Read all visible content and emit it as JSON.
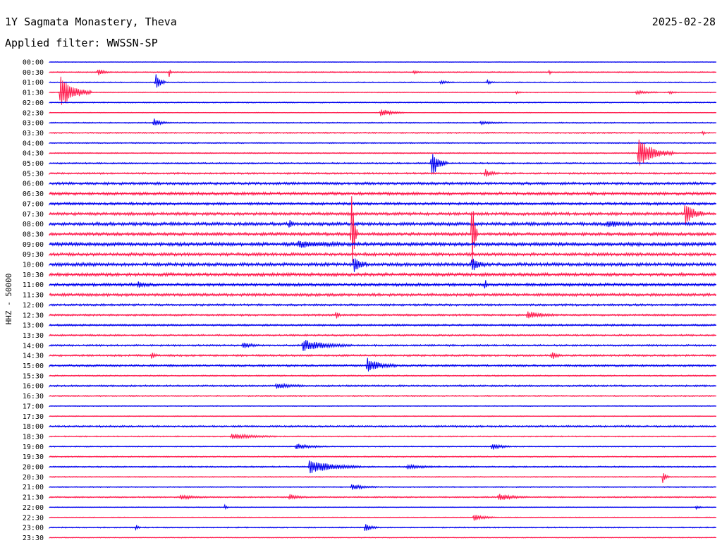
{
  "header": {
    "station": "1Y Sagmata Monastery, Theva",
    "date": "2025-02-28",
    "filter": "Applied filter: WWSSN-SP"
  },
  "chart_data": {
    "type": "line",
    "channel_label": "HHZ - 50000",
    "x_range_minutes": [
      0,
      30
    ],
    "row_labels": [
      "00:00",
      "00:30",
      "01:00",
      "01:30",
      "02:00",
      "02:30",
      "03:00",
      "03:30",
      "04:00",
      "04:30",
      "05:00",
      "05:30",
      "06:00",
      "06:30",
      "07:00",
      "07:30",
      "08:00",
      "08:30",
      "09:00",
      "09:30",
      "10:00",
      "10:30",
      "11:00",
      "11:30",
      "12:00",
      "12:30",
      "13:00",
      "13:30",
      "14:00",
      "14:30",
      "15:00",
      "15:30",
      "16:00",
      "16:30",
      "17:00",
      "17:30",
      "18:00",
      "18:30",
      "19:00",
      "19:30",
      "20:00",
      "20:30",
      "21:00",
      "21:30",
      "22:00",
      "22:30",
      "23:00",
      "23:30"
    ],
    "colors": [
      "#0000ee",
      "#ff1a4d"
    ],
    "noise": [
      0.4,
      0.7,
      0.6,
      0.6,
      0.7,
      0.5,
      0.8,
      0.9,
      0.8,
      0.8,
      1.0,
      1.2,
      1.8,
      2.0,
      1.8,
      2.0,
      2.2,
      2.1,
      2.4,
      2.1,
      2.3,
      2.2,
      2.0,
      1.9,
      1.4,
      1.3,
      1.3,
      1.2,
      1.2,
      1.3,
      1.4,
      0.9,
      1.2,
      0.9,
      0.6,
      0.6,
      1.2,
      0.8,
      0.7,
      0.8,
      0.9,
      0.7,
      0.7,
      0.9,
      0.5,
      0.6,
      0.8,
      0.6
    ],
    "events": [
      {
        "row": 1,
        "minute": 2.2,
        "amp": 6,
        "dur": 0.5
      },
      {
        "row": 1,
        "minute": 5.4,
        "amp": 11,
        "dur": 0.1
      },
      {
        "row": 1,
        "minute": 16.4,
        "amp": 3,
        "dur": 0.3
      },
      {
        "row": 1,
        "minute": 22.5,
        "amp": 4,
        "dur": 0.1
      },
      {
        "row": 2,
        "minute": 4.8,
        "amp": 16,
        "dur": 0.4
      },
      {
        "row": 2,
        "minute": 17.6,
        "amp": 3,
        "dur": 0.6
      },
      {
        "row": 2,
        "minute": 19.7,
        "amp": 3,
        "dur": 0.4
      },
      {
        "row": 3,
        "minute": 0.5,
        "amp": 24,
        "dur": 1.4
      },
      {
        "row": 3,
        "minute": 21.0,
        "amp": 2,
        "dur": 0.3
      },
      {
        "row": 3,
        "minute": 26.4,
        "amp": 3,
        "dur": 1.0
      },
      {
        "row": 3,
        "minute": 27.9,
        "amp": 2,
        "dur": 0.4
      },
      {
        "row": 5,
        "minute": 14.9,
        "amp": 6,
        "dur": 1.1
      },
      {
        "row": 6,
        "minute": 4.7,
        "amp": 6,
        "dur": 0.6
      },
      {
        "row": 6,
        "minute": 19.4,
        "amp": 2,
        "dur": 1.0
      },
      {
        "row": 7,
        "minute": 29.4,
        "amp": 3,
        "dur": 0.1
      },
      {
        "row": 9,
        "minute": 26.5,
        "amp": 20,
        "dur": 1.6
      },
      {
        "row": 10,
        "minute": 17.2,
        "amp": 22,
        "dur": 0.7
      },
      {
        "row": 11,
        "minute": 19.6,
        "amp": 6,
        "dur": 0.6
      },
      {
        "row": 15,
        "minute": 28.6,
        "amp": 18,
        "dur": 0.8
      },
      {
        "row": 16,
        "minute": 10.8,
        "amp": 6,
        "dur": 0.2
      },
      {
        "row": 16,
        "minute": 25.1,
        "amp": 4,
        "dur": 1.2
      },
      {
        "row": 17,
        "minute": 13.6,
        "amp": 70,
        "dur": 0.25
      },
      {
        "row": 17,
        "minute": 19.0,
        "amp": 70,
        "dur": 0.25
      },
      {
        "row": 18,
        "minute": 11.2,
        "amp": 5,
        "dur": 1.8
      },
      {
        "row": 20,
        "minute": 13.7,
        "amp": 12,
        "dur": 0.6
      },
      {
        "row": 20,
        "minute": 19.0,
        "amp": 12,
        "dur": 0.6
      },
      {
        "row": 22,
        "minute": 4.0,
        "amp": 5,
        "dur": 0.5
      },
      {
        "row": 22,
        "minute": 19.6,
        "amp": 10,
        "dur": 0.1
      },
      {
        "row": 25,
        "minute": 12.9,
        "amp": 6,
        "dur": 0.2
      },
      {
        "row": 25,
        "minute": 21.5,
        "amp": 5,
        "dur": 1.2
      },
      {
        "row": 28,
        "minute": 8.7,
        "amp": 4,
        "dur": 0.8
      },
      {
        "row": 28,
        "minute": 11.4,
        "amp": 8,
        "dur": 2.2
      },
      {
        "row": 29,
        "minute": 4.6,
        "amp": 5,
        "dur": 0.3
      },
      {
        "row": 29,
        "minute": 22.6,
        "amp": 6,
        "dur": 0.4
      },
      {
        "row": 30,
        "minute": 14.3,
        "amp": 10,
        "dur": 1.3
      },
      {
        "row": 32,
        "minute": 10.2,
        "amp": 4,
        "dur": 1.2
      },
      {
        "row": 37,
        "minute": 8.2,
        "amp": 4,
        "dur": 2.0
      },
      {
        "row": 38,
        "minute": 11.1,
        "amp": 4,
        "dur": 1.4
      },
      {
        "row": 38,
        "minute": 19.9,
        "amp": 5,
        "dur": 0.9
      },
      {
        "row": 40,
        "minute": 11.7,
        "amp": 10,
        "dur": 2.3
      },
      {
        "row": 40,
        "minute": 16.1,
        "amp": 3,
        "dur": 1.5
      },
      {
        "row": 41,
        "minute": 27.6,
        "amp": 10,
        "dur": 0.3
      },
      {
        "row": 42,
        "minute": 13.6,
        "amp": 4,
        "dur": 1.2
      },
      {
        "row": 43,
        "minute": 5.9,
        "amp": 3,
        "dur": 1.2
      },
      {
        "row": 43,
        "minute": 10.8,
        "amp": 4,
        "dur": 0.8
      },
      {
        "row": 43,
        "minute": 20.2,
        "amp": 5,
        "dur": 1.3
      },
      {
        "row": 44,
        "minute": 7.9,
        "amp": 4,
        "dur": 0.2
      },
      {
        "row": 44,
        "minute": 29.1,
        "amp": 3,
        "dur": 0.3
      },
      {
        "row": 45,
        "minute": 19.1,
        "amp": 5,
        "dur": 1.0
      },
      {
        "row": 46,
        "minute": 3.9,
        "amp": 4,
        "dur": 0.2
      },
      {
        "row": 46,
        "minute": 14.2,
        "amp": 6,
        "dur": 0.6
      }
    ]
  }
}
